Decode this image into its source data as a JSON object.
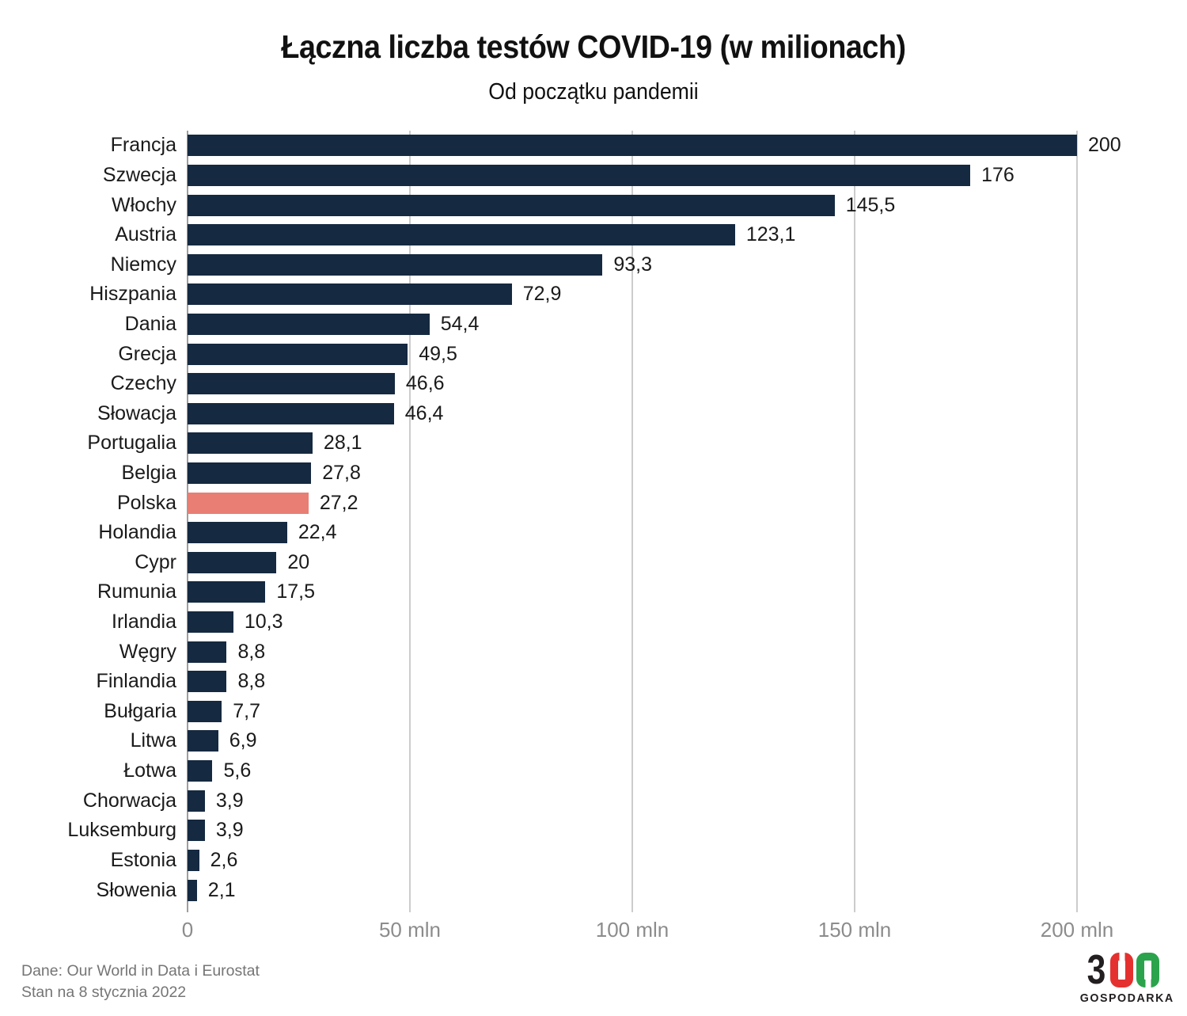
{
  "title": "Łączna liczba testów COVID-19 (w milionach)",
  "subtitle": "Od początku pandemii",
  "chart_data": {
    "type": "bar",
    "orientation": "horizontal",
    "title": "Łączna liczba testów COVID-19 (w milionach)",
    "subtitle": "Od początku pandemii",
    "categories": [
      "Francja",
      "Szwecja",
      "Włochy",
      "Austria",
      "Niemcy",
      "Hiszpania",
      "Dania",
      "Grecja",
      "Czechy",
      "Słowacja",
      "Portugalia",
      "Belgia",
      "Polska",
      "Holandia",
      "Cypr",
      "Rumunia",
      "Irlandia",
      "Węgry",
      "Finlandia",
      "Bułgaria",
      "Litwa",
      "Łotwa",
      "Chorwacja",
      "Luksemburg",
      "Estonia",
      "Słowenia"
    ],
    "values": [
      200,
      176,
      145.5,
      123.1,
      93.3,
      72.9,
      54.4,
      49.5,
      46.6,
      46.4,
      28.1,
      27.8,
      27.2,
      22.4,
      20,
      17.5,
      10.3,
      8.8,
      8.8,
      7.7,
      6.9,
      5.6,
      3.9,
      3.9,
      2.6,
      2.1
    ],
    "value_labels": [
      "200",
      "176",
      "145,5",
      "123,1",
      "93,3",
      "72,9",
      "54,4",
      "49,5",
      "46,6",
      "46,4",
      "28,1",
      "27,8",
      "27,2",
      "22,4",
      "20",
      "17,5",
      "10,3",
      "8,8",
      "8,8",
      "7,7",
      "6,9",
      "5,6",
      "3,9",
      "3,9",
      "2,6",
      "2,1"
    ],
    "highlight_category": "Polska",
    "bar_color": "#152940",
    "highlight_color": "#e87e74",
    "xlim": [
      0,
      200
    ],
    "x_tick_values": [
      0,
      50,
      100,
      150,
      200
    ],
    "x_tick_labels": [
      "0",
      "50 mln",
      "100 mln",
      "150 mln",
      "200 mln"
    ],
    "grid": "vertical",
    "legend": "none"
  },
  "footer": {
    "source": "Dane: Our World in Data i Eurostat",
    "status": "Stan na 8 stycznia 2022"
  },
  "logo": {
    "three": "3",
    "word": "GOSPODARKA",
    "black": "#231f20",
    "red": "#e4312f",
    "green": "#2ba34c"
  }
}
